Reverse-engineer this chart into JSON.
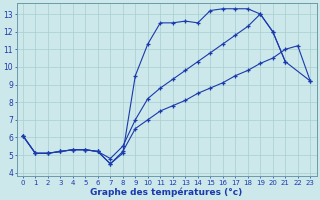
{
  "xlabel": "Graphe des températures (°c)",
  "xlim": [
    -0.5,
    23.5
  ],
  "ylim": [
    3.8,
    13.6
  ],
  "yticks": [
    4,
    5,
    6,
    7,
    8,
    9,
    10,
    11,
    12,
    13
  ],
  "xticks": [
    0,
    1,
    2,
    3,
    4,
    5,
    6,
    7,
    8,
    9,
    10,
    11,
    12,
    13,
    14,
    15,
    16,
    17,
    18,
    19,
    20,
    21,
    22,
    23
  ],
  "bg_color": "#cce8ea",
  "line_color": "#1a3aad",
  "grid_color": "#a8cdd0",
  "line1_x": [
    0,
    1,
    2,
    3,
    4,
    5,
    6,
    7,
    8,
    9,
    10,
    11,
    12,
    13,
    14,
    15,
    16,
    17,
    18,
    19,
    20,
    21,
    23
  ],
  "line1_y": [
    6.1,
    5.1,
    5.1,
    5.2,
    5.3,
    5.3,
    5.2,
    4.5,
    5.1,
    9.5,
    11.3,
    12.5,
    12.5,
    12.6,
    12.5,
    13.2,
    13.3,
    13.3,
    13.3,
    13.0,
    12.0,
    10.3,
    9.2
  ],
  "line2_x": [
    0,
    1,
    2,
    3,
    4,
    5,
    6,
    7,
    8,
    9,
    10,
    11,
    12,
    13,
    14,
    15,
    16,
    17,
    18,
    19,
    20,
    21
  ],
  "line2_y": [
    6.1,
    5.1,
    5.1,
    5.2,
    5.3,
    5.3,
    5.2,
    4.8,
    5.5,
    7.0,
    8.2,
    8.8,
    9.3,
    9.8,
    10.3,
    10.8,
    11.3,
    11.8,
    12.3,
    13.0,
    12.0,
    10.3
  ],
  "line3_x": [
    0,
    1,
    2,
    3,
    4,
    5,
    6,
    7,
    8,
    9,
    10,
    11,
    12,
    13,
    14,
    15,
    16,
    17,
    18,
    19,
    20,
    21,
    22,
    23
  ],
  "line3_y": [
    6.1,
    5.1,
    5.1,
    5.2,
    5.3,
    5.3,
    5.2,
    4.5,
    5.2,
    6.5,
    7.0,
    7.5,
    7.8,
    8.1,
    8.5,
    8.8,
    9.1,
    9.5,
    9.8,
    10.2,
    10.5,
    11.0,
    11.2,
    9.2
  ]
}
